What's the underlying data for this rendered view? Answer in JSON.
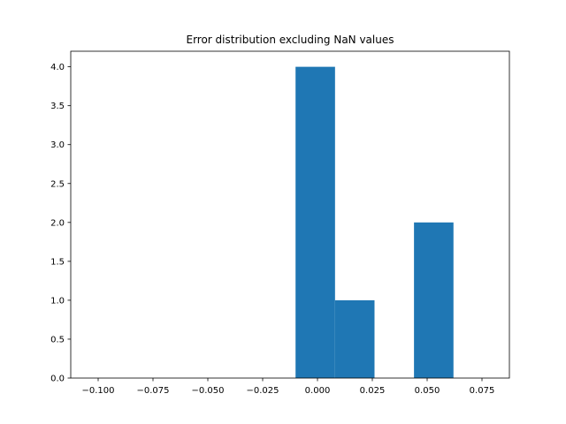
{
  "chart_data": {
    "type": "bar",
    "title": "Error distribution excluding NaN values",
    "xlabel": "",
    "ylabel": "",
    "xlim": [
      -0.1125,
      0.0875
    ],
    "ylim": [
      0,
      4.2
    ],
    "grid": false,
    "bin_width": 0.018,
    "bins": [
      {
        "left": -0.01,
        "value": 4
      },
      {
        "left": 0.008,
        "value": 1
      },
      {
        "left": 0.026,
        "value": 0
      },
      {
        "left": 0.044,
        "value": 2
      },
      {
        "left": 0.062,
        "value": 0
      }
    ],
    "bar_color": "#1f77b4",
    "x_ticks": [
      -0.1,
      -0.075,
      -0.05,
      -0.025,
      0.0,
      0.025,
      0.05,
      0.075
    ],
    "x_tick_labels": [
      "−0.100",
      "−0.075",
      "−0.050",
      "−0.025",
      "0.000",
      "0.025",
      "0.050",
      "0.075"
    ],
    "y_ticks": [
      0.0,
      0.5,
      1.0,
      1.5,
      2.0,
      2.5,
      3.0,
      3.5,
      4.0
    ],
    "y_tick_labels": [
      "0.0",
      "0.5",
      "1.0",
      "1.5",
      "2.0",
      "2.5",
      "3.0",
      "3.5",
      "4.0"
    ]
  }
}
